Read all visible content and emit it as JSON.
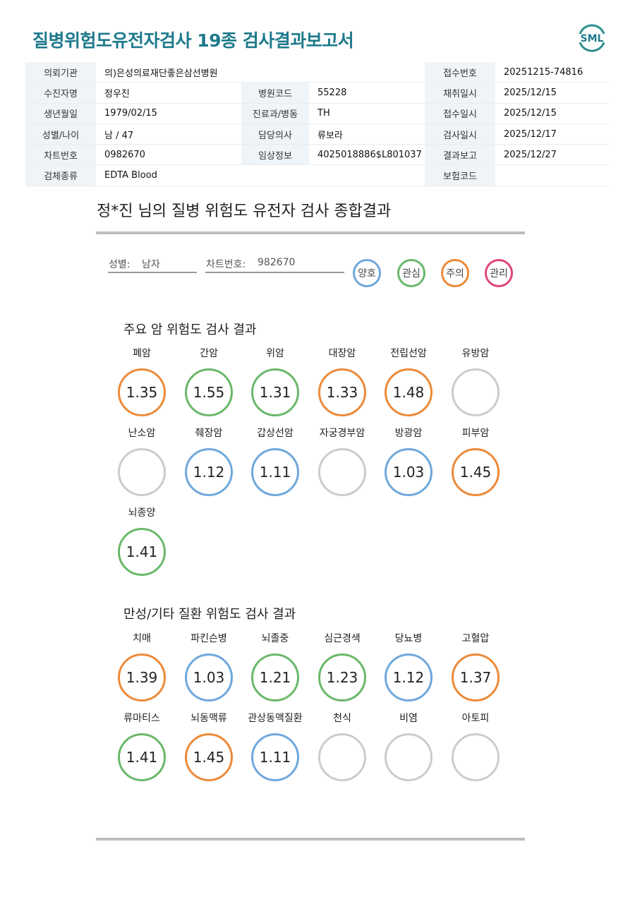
{
  "header": {
    "title": "질병위험도유전자검사 19종 검사결과보고서",
    "logo_text": "SML"
  },
  "info_rows": [
    [
      {
        "label": "의뢰기관",
        "value": "의)은성의료재단좋은삼선병원"
      },
      null,
      {
        "label": "접수번호",
        "value": "20251215-74816"
      }
    ],
    [
      {
        "label": "수진자명",
        "value": "정우진"
      },
      {
        "label": "병원코드",
        "value": "55228"
      },
      {
        "label": "채취일시",
        "value": "2025/12/15"
      }
    ],
    [
      {
        "label": "생년월일",
        "value": "1979/02/15"
      },
      {
        "label": "진료과/병동",
        "value": "TH"
      },
      {
        "label": "접수일시",
        "value": "2025/12/15"
      }
    ],
    [
      {
        "label": "성별/나이",
        "value": "남 / 47"
      },
      {
        "label": "담당의사",
        "value": "류보라"
      },
      {
        "label": "검사일시",
        "value": "2025/12/17"
      }
    ],
    [
      {
        "label": "차트번호",
        "value": "0982670"
      },
      {
        "label": "임상정보",
        "value": "4025018886$L801037"
      },
      {
        "label": "결과보고",
        "value": "2025/12/27"
      }
    ],
    [
      {
        "label": "검체종류",
        "value": "EDTA Blood"
      },
      null,
      {
        "label": "보험코드",
        "value": ""
      }
    ]
  ],
  "summary": {
    "title": "정*진 님의 질병 위험도 유전자 검사 종합결과",
    "gender_label": "성별:",
    "gender_value": "남자",
    "chart_label": "차트번호:",
    "chart_value": "982670"
  },
  "legend": [
    {
      "label": "양호",
      "color": "#6fa8dc"
    },
    {
      "label": "관심",
      "color": "#6ab86a"
    },
    {
      "label": "주의",
      "color": "#ec8a3a"
    },
    {
      "label": "관리",
      "color": "#e0447a"
    }
  ],
  "colors": {
    "empty": "#cccccc"
  },
  "cancer_section": {
    "title": "주요 암 위험도 검사 결과",
    "items": [
      {
        "name": "폐암",
        "value": "1.35",
        "status": "주의"
      },
      {
        "name": "간암",
        "value": "1.55",
        "status": "관심"
      },
      {
        "name": "위암",
        "value": "1.31",
        "status": "관심"
      },
      {
        "name": "대장암",
        "value": "1.33",
        "status": "주의"
      },
      {
        "name": "전립선암",
        "value": "1.48",
        "status": "주의"
      },
      {
        "name": "유방암",
        "value": "",
        "status": ""
      },
      {
        "name": "난소암",
        "value": "",
        "status": ""
      },
      {
        "name": "췌장암",
        "value": "1.12",
        "status": "양호"
      },
      {
        "name": "갑상선암",
        "value": "1.11",
        "status": "양호"
      },
      {
        "name": "자궁경부암",
        "value": "",
        "status": ""
      },
      {
        "name": "방광암",
        "value": "1.03",
        "status": "양호"
      },
      {
        "name": "피부암",
        "value": "1.45",
        "status": "주의"
      },
      {
        "name": "뇌종양",
        "value": "1.41",
        "status": "관심"
      }
    ]
  },
  "chronic_section": {
    "title": "만성/기타 질환 위험도 검사 결과",
    "items": [
      {
        "name": "치매",
        "value": "1.39",
        "status": "주의"
      },
      {
        "name": "파킨슨병",
        "value": "1.03",
        "status": "양호"
      },
      {
        "name": "뇌졸중",
        "value": "1.21",
        "status": "관심"
      },
      {
        "name": "심근경색",
        "value": "1.23",
        "status": "관심"
      },
      {
        "name": "당뇨병",
        "value": "1.12",
        "status": "양호"
      },
      {
        "name": "고혈압",
        "value": "1.37",
        "status": "주의"
      },
      {
        "name": "류마티스",
        "value": "1.41",
        "status": "관심"
      },
      {
        "name": "뇌동맥류",
        "value": "1.45",
        "status": "주의"
      },
      {
        "name": "관상동맥질환",
        "value": "1.11",
        "status": "양호"
      },
      {
        "name": "천식",
        "value": "",
        "status": ""
      },
      {
        "name": "비염",
        "value": "",
        "status": ""
      },
      {
        "name": "아토피",
        "value": "",
        "status": ""
      }
    ]
  }
}
